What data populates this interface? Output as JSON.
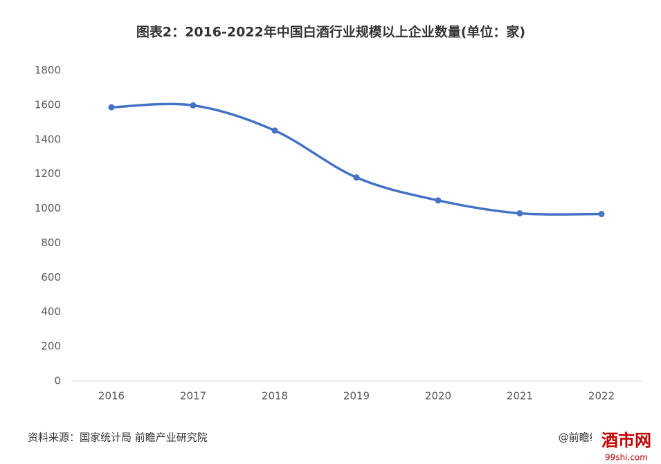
{
  "chart_data": {
    "type": "line",
    "title": "图表2：2016-2022年中国白酒行业规模以上企业数量(单位：家)",
    "categories": [
      "2016",
      "2017",
      "2018",
      "2019",
      "2020",
      "2021",
      "2022"
    ],
    "series": [
      {
        "name": "企业数量",
        "color": "#4472c4",
        "values": [
          1587,
          1598,
          1452,
          1180,
          1047,
          972,
          968
        ]
      }
    ],
    "ylim": [
      0,
      1800
    ],
    "yticks": [
      0,
      200,
      400,
      600,
      800,
      1000,
      1200,
      1400,
      1600,
      1800
    ],
    "grid": false,
    "source": "资料来源：国家统计局 前瞻产业研究院",
    "credit": "@前瞻经济学人APP",
    "logo": "酒市网",
    "logo_url": "99shi.com"
  }
}
